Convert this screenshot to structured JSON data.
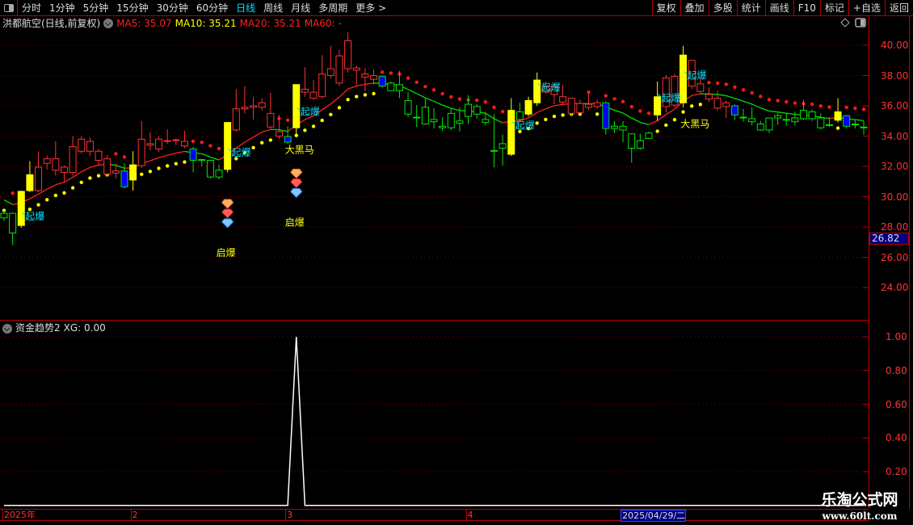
{
  "toolbar": {
    "periods": [
      "分时",
      "1分钟",
      "5分钟",
      "15分钟",
      "30分钟",
      "60分钟",
      "日线",
      "周线",
      "月线",
      "多周期",
      "更多 >"
    ],
    "active_period": "日线",
    "buttons": [
      "复权",
      "叠加",
      "多股",
      "统计",
      "画线",
      "F10",
      "标记",
      "+自选",
      "返回"
    ]
  },
  "legend": {
    "title": "洪都航空(日线,前复权)",
    "ma5": "MA5: 35.07",
    "ma10": "MA10: 35.21",
    "ma20": "MA20: 35.21",
    "ma60": "MA60: -",
    "colors": {
      "ma5": "#ff2020",
      "ma10": "#ffff00",
      "ma20": "#ff2020",
      "ma60": "#ff2020"
    }
  },
  "sub_legend": {
    "title": "资金趋势2",
    "xg": "XG: 0.00"
  },
  "price_axis": [
    "40.00",
    "38.00",
    "36.00",
    "34.00",
    "32.00",
    "30.00",
    "28.00",
    "26.00",
    "24.00"
  ],
  "last_price": "26.82",
  "sub_axis": [
    "1.00",
    "0.80",
    "0.60",
    "0.40",
    "0.20"
  ],
  "date_axis": [
    {
      "label": "2025年",
      "index": 0
    },
    {
      "label": "2",
      "index": 15
    },
    {
      "label": "3",
      "index": 33
    },
    {
      "label": "4",
      "index": 54
    },
    {
      "label": "2025/04/29/二",
      "index": 72,
      "highlight": true
    }
  ],
  "watermark": {
    "line1": "乐淘公式网",
    "line2": "www.60lt.com"
  },
  "colors": {
    "up": "#ff3232",
    "down": "#00e600",
    "signal_yellow": "#ffff00",
    "signal_blue": "#0000ff",
    "label_cyan": "#00e5ff",
    "label_yellow": "#ffff00",
    "grid": "#8b0000"
  },
  "chart_data": {
    "type": "candlestick",
    "ylim": [
      24,
      40
    ],
    "candles": [
      [
        28.9,
        29.1,
        28.4,
        28.6,
        "down"
      ],
      [
        28.9,
        28.95,
        26.8,
        27.6,
        "down"
      ],
      [
        28.1,
        30.4,
        27.95,
        30.35,
        "yellow"
      ],
      [
        30.4,
        32.35,
        30.3,
        31.45,
        "yellow"
      ],
      [
        30.4,
        33.0,
        30.3,
        31.95,
        "up"
      ],
      [
        32.2,
        32.7,
        31.8,
        32.5,
        "up"
      ],
      [
        31.75,
        33.65,
        31.4,
        32.5,
        "up"
      ],
      [
        31.6,
        32.05,
        31.0,
        31.95,
        "up"
      ],
      [
        31.6,
        34.0,
        31.4,
        33.3,
        "up"
      ],
      [
        33.0,
        34.0,
        32.85,
        33.8,
        "up"
      ],
      [
        33.0,
        33.9,
        32.7,
        33.65,
        "up"
      ],
      [
        32.4,
        33.15,
        32.05,
        33.0,
        "up"
      ],
      [
        31.5,
        32.75,
        31.3,
        32.5,
        "up"
      ],
      [
        31.55,
        32.2,
        31.2,
        31.7,
        "up"
      ],
      [
        31.7,
        32.2,
        30.55,
        30.65,
        "blue"
      ],
      [
        31.1,
        33.0,
        30.4,
        32.1,
        "yellow"
      ],
      [
        32.05,
        35.0,
        31.9,
        33.8,
        "up"
      ],
      [
        33.4,
        34.25,
        33.05,
        33.5,
        "up"
      ],
      [
        33.15,
        34.0,
        32.95,
        33.8,
        "up"
      ],
      [
        33.65,
        34.45,
        33.5,
        33.7,
        "up"
      ],
      [
        33.7,
        33.85,
        33.4,
        33.75,
        "up"
      ],
      [
        33.35,
        34.35,
        33.2,
        33.65,
        "up"
      ],
      [
        33.15,
        33.3,
        31.6,
        32.4,
        "blue"
      ],
      [
        32.45,
        32.5,
        32.0,
        32.4,
        "down"
      ],
      [
        32.4,
        32.45,
        31.2,
        31.3,
        "down"
      ],
      [
        31.75,
        32.1,
        31.15,
        31.3,
        "down"
      ],
      [
        31.8,
        34.9,
        31.6,
        34.9,
        "yellow"
      ],
      [
        34.4,
        37.1,
        34.3,
        35.8,
        "up"
      ],
      [
        35.8,
        37.3,
        35.5,
        35.9,
        "up"
      ],
      [
        35.9,
        36.6,
        35.1,
        36.0,
        "up"
      ],
      [
        35.9,
        36.5,
        35.7,
        36.2,
        "up"
      ],
      [
        34.6,
        36.85,
        34.5,
        35.5,
        "up"
      ],
      [
        34.0,
        35.4,
        33.8,
        34.3,
        "up"
      ],
      [
        33.97,
        34.65,
        33.5,
        33.6,
        "blue"
      ],
      [
        34.55,
        37.4,
        34.0,
        37.4,
        "yellow"
      ],
      [
        36.9,
        38.55,
        36.6,
        37.1,
        "up"
      ],
      [
        36.5,
        37.7,
        36.4,
        36.9,
        "up"
      ],
      [
        36.6,
        39.35,
        36.5,
        38.1,
        "up"
      ],
      [
        38.0,
        39.95,
        37.8,
        38.45,
        "up"
      ],
      [
        37.5,
        39.7,
        37.3,
        39.3,
        "up"
      ],
      [
        38.45,
        40.85,
        38.2,
        40.3,
        "up"
      ],
      [
        38.35,
        38.65,
        37.35,
        38.5,
        "up"
      ],
      [
        37.9,
        38.5,
        36.95,
        38.1,
        "up"
      ],
      [
        37.75,
        38.4,
        37.4,
        38.0,
        "up"
      ],
      [
        37.95,
        38.0,
        37.2,
        37.3,
        "blue"
      ],
      [
        37.5,
        37.6,
        37.0,
        37.0,
        "down"
      ],
      [
        37.4,
        38.3,
        36.5,
        37.0,
        "down"
      ],
      [
        36.35,
        36.9,
        35.25,
        35.45,
        "down"
      ],
      [
        35.25,
        36.05,
        34.6,
        35.2,
        "down"
      ],
      [
        35.9,
        36.5,
        34.75,
        34.8,
        "down"
      ],
      [
        35.1,
        35.85,
        34.5,
        34.95,
        "down"
      ],
      [
        34.65,
        35.25,
        34.35,
        34.55,
        "down"
      ],
      [
        35.5,
        35.8,
        34.4,
        34.55,
        "down"
      ],
      [
        35.0,
        35.9,
        34.3,
        34.85,
        "down"
      ],
      [
        36.1,
        36.7,
        34.8,
        35.3,
        "down"
      ],
      [
        35.95,
        36.1,
        35.15,
        35.45,
        "down"
      ],
      [
        35.1,
        35.6,
        34.7,
        34.9,
        "down"
      ],
      [
        33.05,
        35.45,
        31.95,
        33.0,
        "down"
      ],
      [
        33.5,
        34.1,
        32.05,
        33.2,
        "down"
      ],
      [
        32.8,
        36.5,
        32.7,
        35.7,
        "yellow"
      ],
      [
        35.6,
        36.2,
        34.9,
        35.1,
        "down"
      ],
      [
        35.45,
        36.6,
        35.3,
        36.35,
        "yellow"
      ],
      [
        36.2,
        38.2,
        36.0,
        37.7,
        "yellow"
      ],
      [
        36.9,
        37.6,
        36.8,
        37.25,
        "up"
      ],
      [
        36.75,
        37.5,
        36.1,
        37.25,
        "up"
      ],
      [
        36.25,
        37.4,
        36.1,
        36.6,
        "up"
      ],
      [
        35.5,
        36.5,
        35.35,
        36.5,
        "up"
      ],
      [
        35.55,
        36.4,
        35.5,
        36.15,
        "up"
      ],
      [
        35.9,
        36.75,
        35.7,
        36.1,
        "up"
      ],
      [
        35.95,
        36.4,
        35.8,
        36.2,
        "up"
      ],
      [
        36.2,
        36.3,
        34.1,
        34.5,
        "blue"
      ],
      [
        34.65,
        35.0,
        34.2,
        34.5,
        "down"
      ],
      [
        34.65,
        35.0,
        33.6,
        34.4,
        "down"
      ],
      [
        34.15,
        34.15,
        32.25,
        33.2,
        "down"
      ],
      [
        33.7,
        34.15,
        33.1,
        33.2,
        "down"
      ],
      [
        34.2,
        34.3,
        33.8,
        33.85,
        "down"
      ],
      [
        35.4,
        37.6,
        35.0,
        36.6,
        "yellow"
      ],
      [
        35.95,
        38.05,
        35.55,
        37.85,
        "up"
      ],
      [
        36.05,
        38.1,
        35.9,
        37.95,
        "up"
      ],
      [
        36.2,
        39.95,
        35.9,
        39.35,
        "yellow"
      ],
      [
        37.3,
        39.0,
        37.1,
        39.0,
        "up"
      ],
      [
        36.95,
        37.9,
        36.85,
        37.45,
        "up"
      ],
      [
        36.45,
        37.2,
        36.25,
        36.75,
        "up"
      ],
      [
        35.85,
        37.0,
        35.7,
        36.5,
        "up"
      ],
      [
        35.95,
        36.35,
        35.2,
        36.2,
        "up"
      ],
      [
        36.0,
        36.1,
        35.05,
        35.4,
        "blue"
      ],
      [
        35.25,
        35.8,
        34.95,
        35.2,
        "down"
      ],
      [
        35.15,
        35.9,
        34.7,
        34.95,
        "down"
      ],
      [
        34.8,
        35.0,
        34.35,
        34.4,
        "down"
      ],
      [
        35.2,
        35.2,
        34.2,
        34.4,
        "down"
      ],
      [
        35.35,
        35.5,
        34.75,
        35.2,
        "down"
      ],
      [
        35.1,
        35.5,
        34.7,
        35.05,
        "down"
      ],
      [
        35.2,
        35.6,
        34.7,
        34.95,
        "down"
      ],
      [
        35.7,
        36.4,
        35.05,
        35.15,
        "down"
      ],
      [
        35.6,
        35.75,
        35.0,
        35.15,
        "down"
      ],
      [
        35.2,
        35.5,
        34.45,
        34.55,
        "down"
      ],
      [
        34.75,
        35.25,
        34.6,
        34.7,
        "down"
      ],
      [
        35.05,
        36.5,
        34.9,
        35.6,
        "yellow"
      ],
      [
        35.35,
        35.4,
        34.5,
        34.65,
        "blue"
      ],
      [
        34.8,
        35.1,
        34.5,
        34.75,
        "down"
      ],
      [
        34.6,
        35.0,
        34.1,
        34.6,
        "down"
      ]
    ],
    "annotations": [
      {
        "text": "起爆",
        "index": 2,
        "price": 28.7,
        "color": "cyan"
      },
      {
        "text": "起爆",
        "index": 26,
        "price": 32.9,
        "color": "cyan"
      },
      {
        "text": "起爆",
        "index": 34,
        "price": 35.6,
        "color": "cyan"
      },
      {
        "text": "起爆",
        "index": 59,
        "price": 34.7,
        "color": "cyan"
      },
      {
        "text": "起爆",
        "index": 62,
        "price": 37.2,
        "color": "cyan"
      },
      {
        "text": "起爆",
        "index": 76,
        "price": 36.5,
        "color": "cyan"
      },
      {
        "text": "起爆",
        "index": 79,
        "price": 38.0,
        "color": "cyan"
      },
      {
        "text": "大黑马",
        "index": 34,
        "price": 33.1,
        "color": "yellow"
      },
      {
        "text": "大黑马",
        "index": 80,
        "price": 34.8,
        "color": "yellow"
      },
      {
        "text": "启爆",
        "index": 26,
        "price": 26.3,
        "color": "yellow",
        "gems": true
      },
      {
        "text": "启爆",
        "index": 34,
        "price": 28.3,
        "color": "yellow",
        "gems": true
      }
    ],
    "sub_series": {
      "name": "XG",
      "spike_index": 34,
      "ylim": [
        0,
        1
      ]
    }
  }
}
